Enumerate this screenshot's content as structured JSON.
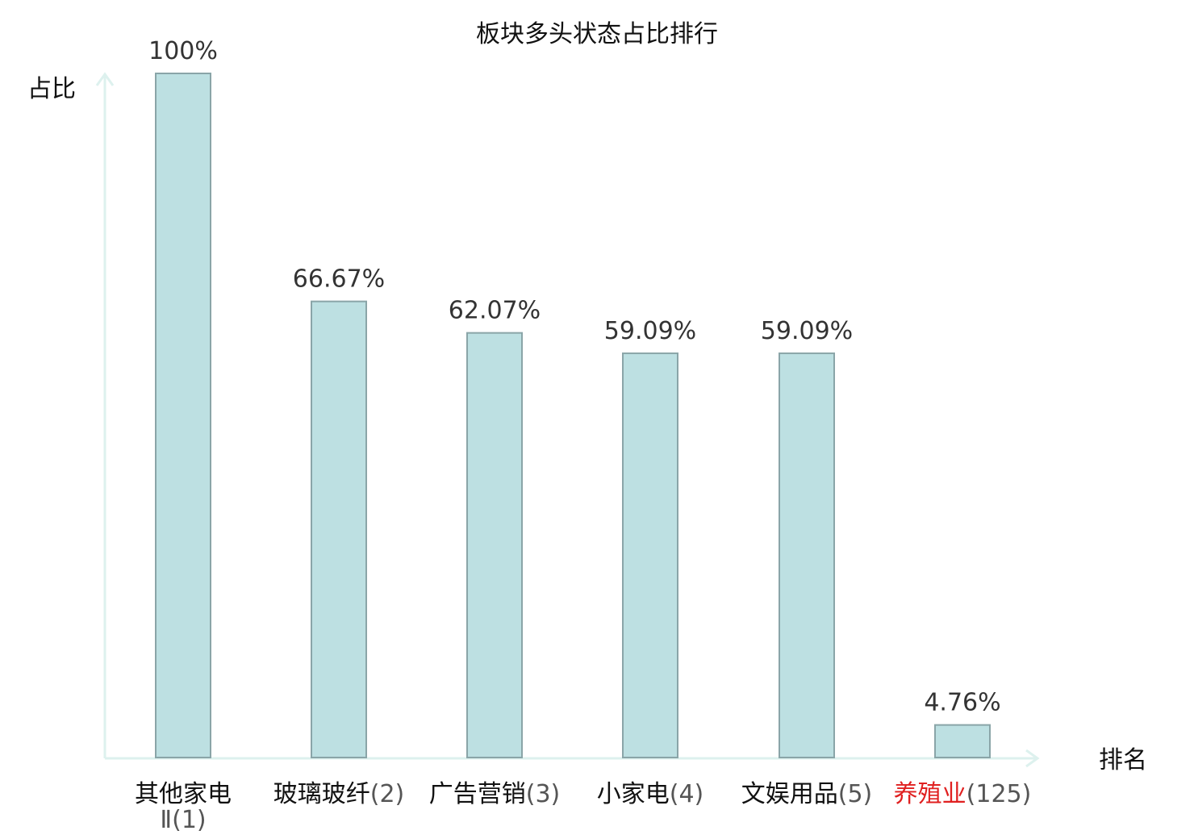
{
  "chart_data": {
    "type": "bar",
    "title": "板块多头状态占比排行",
    "ylabel": "占比",
    "xlabel": "排名",
    "ylim": [
      0,
      100
    ],
    "grid": false,
    "categories": [
      {
        "name": "其他家电",
        "name_line2": "Ⅱ",
        "rank": "(1)",
        "highlight": false
      },
      {
        "name": "玻璃玻纤",
        "name_line2": "",
        "rank": "(2)",
        "highlight": false
      },
      {
        "name": "广告营销",
        "name_line2": "",
        "rank": "(3)",
        "highlight": false
      },
      {
        "name": "小家电",
        "name_line2": "",
        "rank": "(4)",
        "highlight": false
      },
      {
        "name": "文娱用品",
        "name_line2": "",
        "rank": "(5)",
        "highlight": false
      },
      {
        "name": "养殖业",
        "name_line2": "",
        "rank": "(125)",
        "highlight": true
      }
    ],
    "values": [
      100,
      66.67,
      62.07,
      59.09,
      59.09,
      4.76
    ],
    "value_labels": [
      "100%",
      "66.67%",
      "62.07%",
      "59.09%",
      "59.09%",
      "4.76%"
    ]
  },
  "colors": {
    "bar_fill": "#bde0e2",
    "bar_stroke": "#8aa5a8",
    "axis": "#ddf1ee",
    "highlight": "#e02020",
    "text": "#111111"
  }
}
